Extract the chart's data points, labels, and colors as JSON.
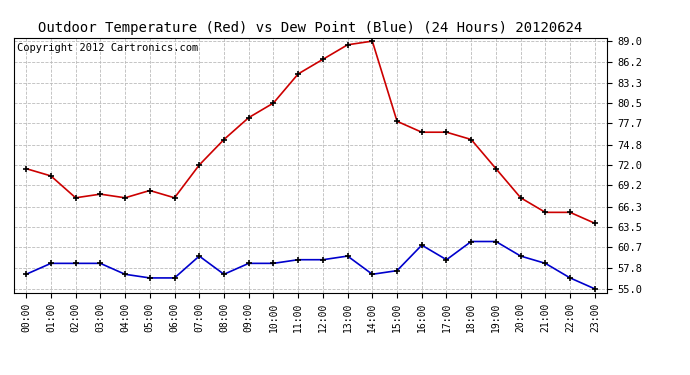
{
  "title": "Outdoor Temperature (Red) vs Dew Point (Blue) (24 Hours) 20120624",
  "copyright": "Copyright 2012 Cartronics.com",
  "hours": [
    0,
    1,
    2,
    3,
    4,
    5,
    6,
    7,
    8,
    9,
    10,
    11,
    12,
    13,
    14,
    15,
    16,
    17,
    18,
    19,
    20,
    21,
    22,
    23
  ],
  "temp_red": [
    71.5,
    70.5,
    67.5,
    68.0,
    67.5,
    68.5,
    67.5,
    72.0,
    75.5,
    78.5,
    80.5,
    84.5,
    86.5,
    88.5,
    89.0,
    78.0,
    76.5,
    76.5,
    75.5,
    71.5,
    67.5,
    65.5,
    65.5,
    64.0
  ],
  "dew_blue": [
    57.0,
    58.5,
    58.5,
    58.5,
    57.0,
    56.5,
    56.5,
    59.5,
    57.0,
    58.5,
    58.5,
    59.0,
    59.0,
    59.5,
    57.0,
    57.5,
    61.0,
    59.0,
    61.5,
    61.5,
    59.5,
    58.5,
    56.5,
    55.0
  ],
  "yticks": [
    55.0,
    57.8,
    60.7,
    63.5,
    66.3,
    69.2,
    72.0,
    74.8,
    77.7,
    80.5,
    83.3,
    86.2,
    89.0
  ],
  "ymin": 54.5,
  "ymax": 89.5,
  "background_color": "#ffffff",
  "plot_bg_color": "#ffffff",
  "grid_color": "#bbbbbb",
  "red_color": "#cc0000",
  "blue_color": "#0000cc",
  "title_fontsize": 10,
  "copyright_fontsize": 7.5,
  "tick_fontsize": 7,
  "ytick_fontsize": 7.5
}
